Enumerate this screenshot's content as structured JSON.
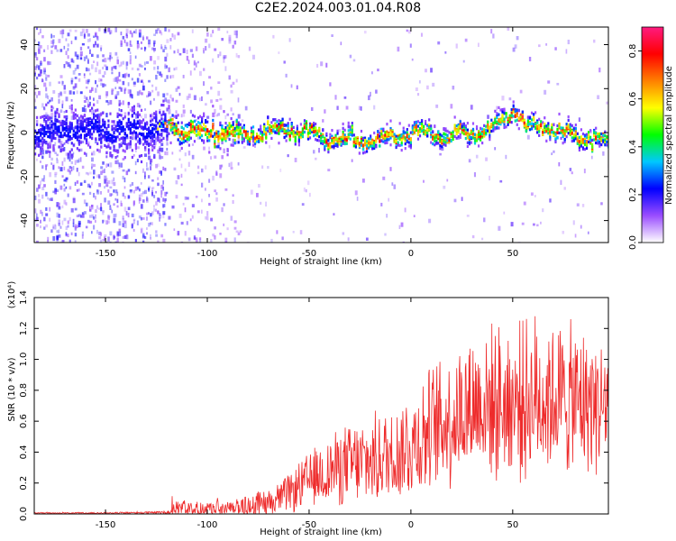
{
  "title": "C2E2.2024.003.01.04.R08",
  "colors": {
    "snr_line": "#ee2b2b",
    "axis": "#000000"
  },
  "chart_data": [
    {
      "type": "heatmap",
      "xlabel": "Height of straight line (km)",
      "ylabel": "Frequency (Hz)",
      "xlim": [
        -185,
        97
      ],
      "ylim": [
        -50,
        48
      ],
      "xticks": [
        -150,
        -100,
        -50,
        0,
        50
      ],
      "xtick_labels": [
        "-150",
        "-100",
        "-50",
        "0",
        "50"
      ],
      "yticks": [
        -40,
        -20,
        0,
        20,
        40
      ],
      "ytick_labels": [
        "-40",
        "-20",
        "0",
        "20",
        "40"
      ],
      "colorbar": {
        "label": "Normalized spectral amplitude",
        "range": [
          0,
          0.9
        ],
        "ticks": [
          0,
          0.2,
          0.4,
          0.6,
          0.8
        ],
        "tick_labels": [
          "0.0",
          "0.2",
          "0.4",
          "0.6",
          "0.8"
        ],
        "colormap": [
          "#ffffff",
          "#9a4dff",
          "#0000ff",
          "#00c8ff",
          "#00ff00",
          "#ffff00",
          "#ff8000",
          "#ff0000",
          "#ff1a80"
        ]
      },
      "ridge": {
        "description_points_x": [
          -185,
          -150,
          -120,
          -100,
          -80,
          -60,
          -40,
          -20,
          0,
          20,
          40,
          50,
          55,
          70,
          80,
          97
        ],
        "description_points_y": [
          0,
          1,
          2,
          0,
          -1,
          2,
          -3,
          -4,
          0,
          -1,
          1,
          10,
          4,
          2,
          -2,
          -4
        ]
      }
    },
    {
      "type": "line",
      "xlabel": "Height of straight line (km)",
      "ylabel": "SNR (10 * v/v)",
      "yscale_label": "(x10⁴)",
      "xlim": [
        -185,
        97
      ],
      "ylim": [
        0,
        1.4
      ],
      "xticks": [
        -150,
        -100,
        -50,
        0,
        50
      ],
      "xtick_labels": [
        "-150",
        "-100",
        "-50",
        "0",
        "50"
      ],
      "yticks": [
        0,
        0.2,
        0.4,
        0.6,
        0.8,
        1.0,
        1.2,
        1.4
      ],
      "ytick_labels": [
        "0.0",
        "0.2",
        "0.4",
        "0.6",
        "0.8",
        "1.0",
        "1.2",
        "1.4"
      ],
      "series": [
        {
          "envelope_x": [
            -185,
            -150,
            -120,
            -115,
            -100,
            -90,
            -80,
            -70,
            -60,
            -50,
            -40,
            -30,
            -20,
            -10,
            0,
            10,
            20,
            30,
            40,
            50,
            60,
            70,
            80,
            90,
            97
          ],
          "envelope_mean": [
            0.005,
            0.006,
            0.01,
            0.03,
            0.03,
            0.03,
            0.05,
            0.08,
            0.13,
            0.22,
            0.28,
            0.32,
            0.34,
            0.38,
            0.45,
            0.55,
            0.62,
            0.72,
            0.72,
            0.72,
            0.75,
            0.76,
            0.73,
            0.72,
            0.7
          ],
          "envelope_amp": [
            0.005,
            0.006,
            0.01,
            0.06,
            0.06,
            0.06,
            0.08,
            0.1,
            0.14,
            0.2,
            0.25,
            0.3,
            0.32,
            0.35,
            0.42,
            0.45,
            0.5,
            0.52,
            0.55,
            0.55,
            0.6,
            0.55,
            0.55,
            0.5,
            0.5
          ]
        }
      ]
    }
  ]
}
